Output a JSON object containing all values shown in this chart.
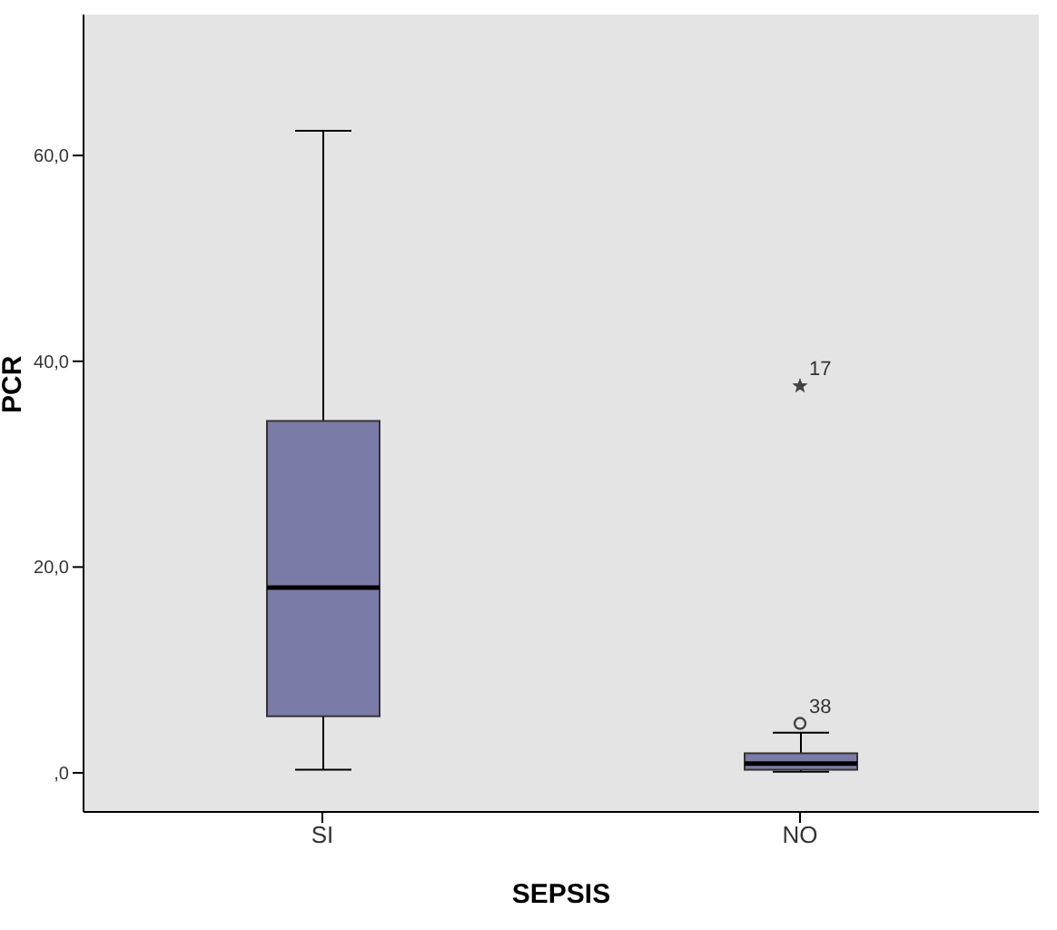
{
  "chart_data": {
    "type": "box",
    "xlabel": "SEPSIS",
    "ylabel": "PCR",
    "categories": [
      "SI",
      "NO"
    ],
    "color": "#7b7ba8",
    "boxes": [
      {
        "low": 0.3,
        "q1": 5.5,
        "median": 18.0,
        "q3": 34.2,
        "high": 62.4
      },
      {
        "low": 0.1,
        "q1": 0.3,
        "median": 0.9,
        "q3": 1.9,
        "high": 3.9,
        "outliers": [
          37.6,
          4.8
        ]
      }
    ],
    "ylim": [
      -3.8,
      73.7
    ],
    "yticks": [
      {
        "value": 0,
        "label": ",0"
      },
      {
        "value": 20,
        "label": "20,0"
      },
      {
        "value": 40,
        "label": "40,0"
      },
      {
        "value": 60,
        "label": "60,0"
      }
    ],
    "annotations": [
      "17",
      "38"
    ]
  }
}
